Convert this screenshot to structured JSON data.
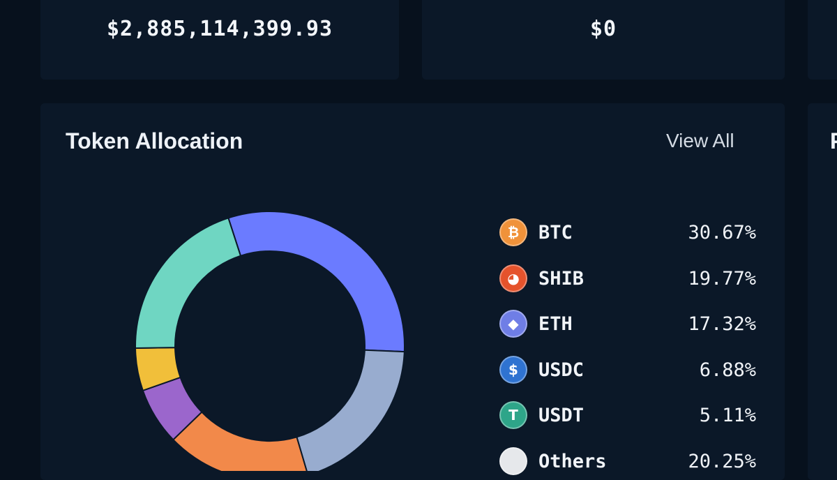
{
  "stats": [
    {
      "value": "$2,885,114,399.93"
    },
    {
      "value": "$0"
    }
  ],
  "allocation": {
    "title": "Token Allocation",
    "view_all": "View All",
    "right_card_title_fragment": "P"
  },
  "chart_data": {
    "type": "pie",
    "donut": true,
    "categories": [
      "BTC",
      "SHIB",
      "ETH",
      "USDC",
      "USDT",
      "Others"
    ],
    "values": [
      30.67,
      19.77,
      17.32,
      6.88,
      5.11,
      20.25
    ],
    "legend_labels": [
      "30.67%",
      "19.77%",
      "17.32%",
      "6.88%",
      "5.11%",
      "20.25%"
    ],
    "colors": [
      "#6b7bff",
      "#98accf",
      "#f2894a",
      "#9b66cc",
      "#f1bf3a",
      "#6fd6c2"
    ],
    "legend_position": "right"
  },
  "legend_icons": [
    {
      "name": "bitcoin-icon",
      "color": "#f0923a",
      "glyph": "₿"
    },
    {
      "name": "shiba-icon",
      "color": "#e5532c",
      "glyph": "◕"
    },
    {
      "name": "ethereum-icon",
      "color": "#6f7ee6",
      "glyph": "◆"
    },
    {
      "name": "usdc-icon",
      "color": "#2f73d1",
      "glyph": "$"
    },
    {
      "name": "tether-icon",
      "color": "#2ea589",
      "glyph": "T"
    },
    {
      "name": "others-icon",
      "color": "#e6e8eb",
      "glyph": ""
    }
  ]
}
